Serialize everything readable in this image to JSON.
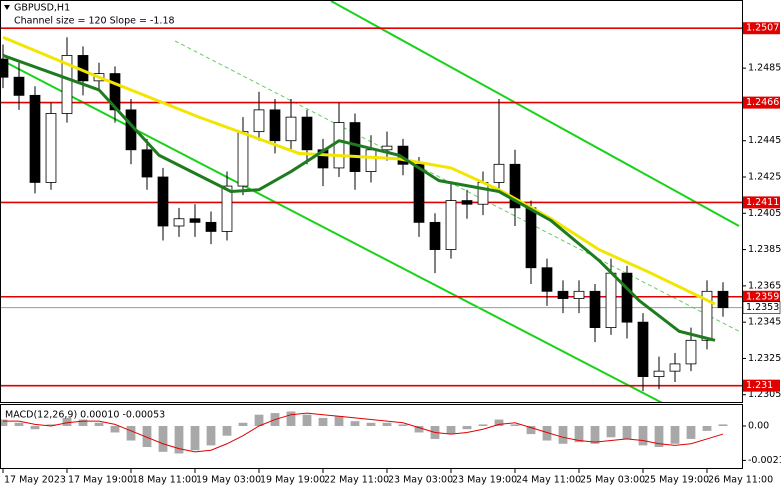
{
  "chart_data": [
    {
      "type": "candlestick",
      "title": "GBPUSD,H1",
      "subtitle": "Channel size = 120 Slope = -1.18",
      "x": [
        0,
        4,
        8,
        12,
        16,
        20,
        24,
        28,
        32,
        36,
        40,
        44,
        48,
        52,
        56,
        60,
        64,
        68,
        72,
        76,
        80,
        84,
        88,
        92,
        96,
        100,
        104,
        108,
        112,
        116,
        120,
        124,
        128,
        132,
        136,
        140,
        144,
        148,
        152,
        156,
        160,
        164,
        168,
        172,
        176,
        180
      ],
      "open": [
        1.249,
        1.248,
        1.247,
        1.2422,
        1.246,
        1.2492,
        1.2478,
        1.2482,
        1.2462,
        1.244,
        1.2425,
        1.2398,
        1.2402,
        1.24,
        1.2395,
        1.242,
        1.245,
        1.2462,
        1.2445,
        1.2458,
        1.244,
        1.243,
        1.2455,
        1.2428,
        1.244,
        1.2442,
        1.2432,
        1.24,
        1.2385,
        1.2412,
        1.241,
        1.2422,
        1.2432,
        1.2408,
        1.2375,
        1.2362,
        1.2358,
        1.2362,
        1.2342,
        1.2372,
        1.2345,
        1.2315,
        1.2318,
        1.2322,
        1.2335,
        1.2362
      ],
      "high": [
        1.2498,
        1.2488,
        1.2475,
        1.2466,
        1.2502,
        1.2497,
        1.2488,
        1.2486,
        1.2468,
        1.2446,
        1.243,
        1.2408,
        1.241,
        1.2406,
        1.2428,
        1.2458,
        1.2472,
        1.2468,
        1.2468,
        1.2462,
        1.2446,
        1.2466,
        1.246,
        1.2448,
        1.245,
        1.2446,
        1.2436,
        1.2405,
        1.2422,
        1.2418,
        1.2428,
        1.2468,
        1.244,
        1.2412,
        1.238,
        1.2368,
        1.2368,
        1.2366,
        1.238,
        1.2376,
        1.235,
        1.2326,
        1.2328,
        1.2342,
        1.2368,
        1.2367
      ],
      "low": [
        1.2474,
        1.2462,
        1.2416,
        1.2418,
        1.2455,
        1.247,
        1.2472,
        1.2455,
        1.2432,
        1.2418,
        1.239,
        1.2392,
        1.2392,
        1.2388,
        1.239,
        1.2415,
        1.2445,
        1.2438,
        1.244,
        1.2432,
        1.242,
        1.2425,
        1.2418,
        1.2422,
        1.2434,
        1.2426,
        1.2392,
        1.2372,
        1.238,
        1.2402,
        1.2404,
        1.2418,
        1.2398,
        1.2366,
        1.2354,
        1.235,
        1.235,
        1.2334,
        1.2338,
        1.2336,
        1.2307,
        1.2308,
        1.2312,
        1.2318,
        1.233,
        1.2348
      ],
      "close": [
        1.248,
        1.247,
        1.2422,
        1.246,
        1.2492,
        1.2478,
        1.2482,
        1.2462,
        1.244,
        1.2425,
        1.2398,
        1.2402,
        1.24,
        1.2395,
        1.242,
        1.245,
        1.2462,
        1.2445,
        1.2458,
        1.244,
        1.243,
        1.2455,
        1.2428,
        1.244,
        1.2442,
        1.2432,
        1.24,
        1.2385,
        1.2412,
        1.241,
        1.2422,
        1.2432,
        1.2408,
        1.2375,
        1.2362,
        1.2358,
        1.2362,
        1.2342,
        1.2372,
        1.2345,
        1.2315,
        1.2318,
        1.2322,
        1.2335,
        1.2362,
        1.2353
      ],
      "up_color": "#ffffff",
      "down_color": "#000000",
      "lines": [
        {
          "color": "#f2e600",
          "x": [
            0,
            24,
            49,
            74,
            99,
            112,
            124,
            137,
            149,
            162,
            178
          ],
          "values": [
            1.2502,
            1.248,
            1.2458,
            1.2438,
            1.2435,
            1.243,
            1.2418,
            1.2402,
            1.2385,
            1.2372,
            1.2355
          ]
        },
        {
          "color": "#1e7b1e",
          "x": [
            0,
            24,
            39,
            57,
            64,
            72,
            84,
            99,
            109,
            124,
            137,
            149,
            159,
            169,
            178
          ],
          "values": [
            1.2492,
            1.2473,
            1.2437,
            1.2417,
            1.2418,
            1.2428,
            1.2445,
            1.2437,
            1.2423,
            1.2417,
            1.2401,
            1.2379,
            1.2357,
            1.234,
            1.2335
          ]
        }
      ],
      "trend_lines": [
        {
          "color": "#19d219",
          "dashed": false,
          "x": [
            82,
            184
          ],
          "values": [
            1.2522,
            1.2398
          ]
        },
        {
          "color": "#19d219",
          "dashed": false,
          "x": [
            0,
            167
          ],
          "values": [
            1.2489,
            1.2298
          ]
        },
        {
          "color": "#66cc66",
          "dashed": true,
          "x": [
            43,
            184
          ],
          "values": [
            1.25,
            1.234
          ]
        }
      ],
      "levels": {
        "color": "#e00000",
        "values": [
          1.2507,
          1.2466,
          1.2411,
          1.2359,
          1.231
        ]
      },
      "last_price": 1.2353,
      "xlim": [
        0,
        185
      ],
      "ylim": [
        1.2301,
        1.2522
      ],
      "yticks": [
        1.2485,
        1.2445,
        1.2425,
        1.2405,
        1.2385,
        1.2365,
        1.2345,
        1.2325,
        1.2305
      ]
    },
    {
      "type": "macd",
      "title": "MACD(12,26,9) 0.00010 -0.00053",
      "x": [
        0,
        4,
        8,
        12,
        16,
        20,
        24,
        28,
        32,
        36,
        40,
        44,
        48,
        52,
        56,
        60,
        64,
        68,
        72,
        76,
        80,
        84,
        88,
        92,
        96,
        100,
        104,
        108,
        112,
        116,
        120,
        124,
        128,
        132,
        136,
        140,
        144,
        148,
        152,
        156,
        160,
        164,
        168,
        172,
        176,
        180
      ],
      "histogram": {
        "color": "#a8a8a8",
        "values": [
          0.0004,
          0.0002,
          -0.0002,
          0.0001,
          0.0005,
          0.0004,
          0.0002,
          -0.0004,
          -0.0009,
          -0.0013,
          -0.0016,
          -0.0017,
          -0.0015,
          -0.0012,
          -0.0006,
          0.0002,
          0.0007,
          0.0008,
          0.0009,
          0.0007,
          0.0005,
          0.0006,
          0.0003,
          0.0002,
          0.0002,
          0.0001,
          -0.0004,
          -0.0008,
          -0.0005,
          -0.0002,
          0.0001,
          0.0004,
          0.0001,
          -0.0005,
          -0.0009,
          -0.0011,
          -0.001,
          -0.0011,
          -0.0007,
          -0.0008,
          -0.0012,
          -0.0013,
          -0.0011,
          -0.0008,
          -0.0003,
          0.0001
        ]
      },
      "signal": {
        "color": "#e00000",
        "values": [
          0.0003,
          0.0003,
          0.0001,
          0.0,
          0.0002,
          0.0003,
          0.0003,
          0.0001,
          -0.0003,
          -0.0007,
          -0.0011,
          -0.0014,
          -0.0016,
          -0.0015,
          -0.0011,
          -0.0006,
          0.0,
          0.0004,
          0.0007,
          0.0008,
          0.0007,
          0.0006,
          0.0005,
          0.0004,
          0.0003,
          0.0002,
          -0.0001,
          -0.0004,
          -0.0005,
          -0.0004,
          -0.0002,
          0.0001,
          0.0002,
          -0.0001,
          -0.0004,
          -0.0007,
          -0.0009,
          -0.001,
          -0.0009,
          -0.0008,
          -0.0009,
          -0.0011,
          -0.0012,
          -0.0011,
          -0.0008,
          -0.0005
        ]
      },
      "xlim": [
        0,
        185
      ],
      "ylim": [
        -0.0026,
        0.0013
      ],
      "yticks": [
        {
          "value": 0,
          "label": "0.00"
        },
        -0.00213
      ],
      "xticks": [
        {
          "value": 0,
          "label": "17 May 2023"
        },
        {
          "value": 16,
          "label": "17 May 19:00"
        },
        {
          "value": 32,
          "label": "18 May 11:00"
        },
        {
          "value": 48,
          "label": "19 May 03:00"
        },
        {
          "value": 64,
          "label": "19 May 19:00"
        },
        {
          "value": 80,
          "label": "22 May 11:00"
        },
        {
          "value": 96,
          "label": "23 May 03:00"
        },
        {
          "value": 112,
          "label": "23 May 19:00"
        },
        {
          "value": 128,
          "label": "24 May 11:00"
        },
        {
          "value": 144,
          "label": "25 May 03:00"
        },
        {
          "value": 160,
          "label": "25 May 19:00"
        },
        {
          "value": 176,
          "label": "26 May 11:00"
        }
      ]
    }
  ]
}
